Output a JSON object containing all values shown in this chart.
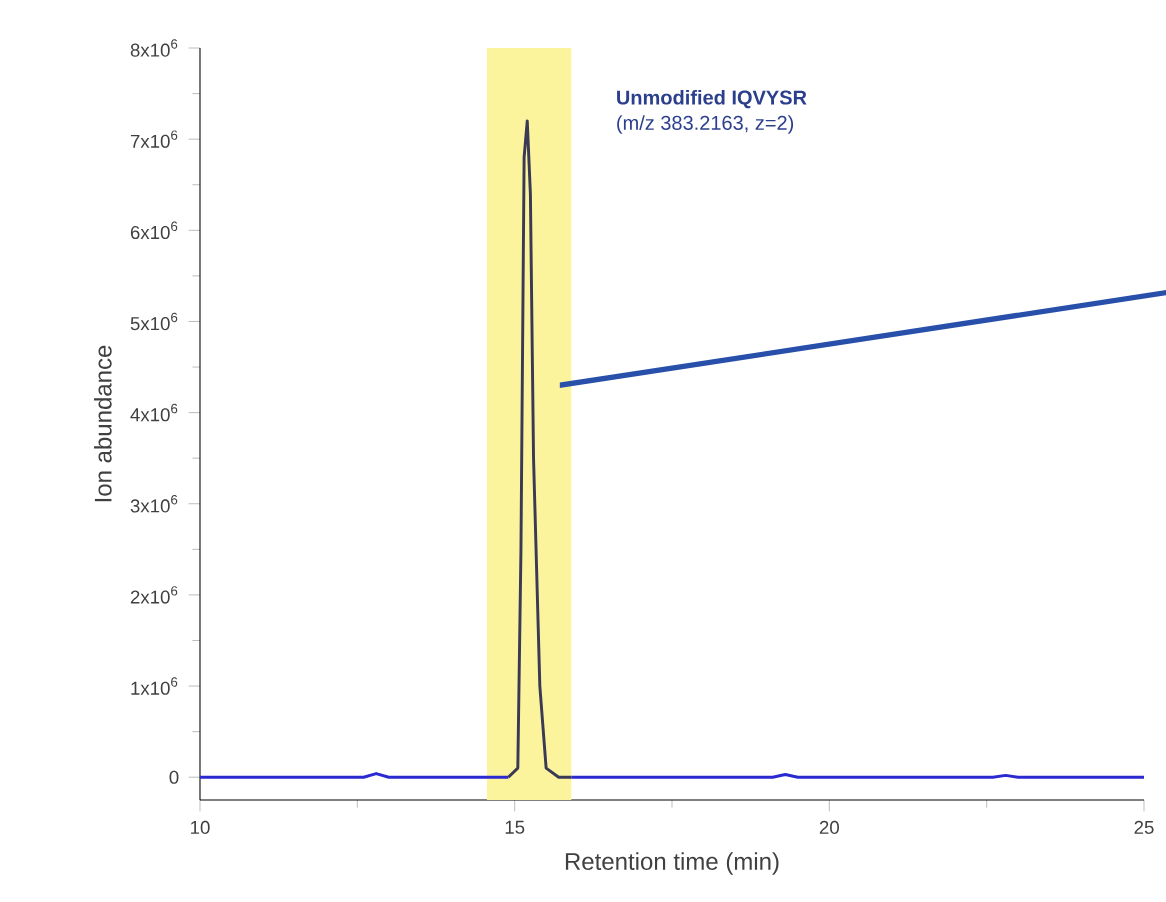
{
  "chart_data": {
    "type": "line",
    "xlabel": "Retention time (min)",
    "ylabel": "Ion abundance",
    "annotations": [
      "**Unmodified IQVYSR**",
      "(m/z 383.2163, z=2)"
    ],
    "xlim": [
      10,
      25
    ],
    "xticks": [
      10,
      15,
      20,
      25
    ],
    "ylim": [
      -250000,
      8000000
    ],
    "yticks": [
      0,
      {
        "value": 1000000,
        "label": "1x10$^{6}$"
      },
      {
        "value": 2000000,
        "label": "2x10$^{6}$"
      },
      {
        "value": 3000000,
        "label": "3x10$^{6}$"
      },
      {
        "value": 4000000,
        "label": "4x10$^{6}$"
      },
      {
        "value": 5000000,
        "label": "5x10$^{6}$"
      },
      {
        "value": 6000000,
        "label": "6x10$^{6}$"
      },
      {
        "value": 7000000,
        "label": "7x10$^{6}$"
      },
      {
        "value": 8000000,
        "label": "8x10$^{6}$"
      }
    ],
    "bands": [
      {
        "axis": "x",
        "from": 14.56,
        "to": 15.9,
        "color": "#fbf49c"
      }
    ],
    "series": [
      {
        "color": "#2a2ad0",
        "x": [
          10,
          12.6,
          12.8,
          13.0,
          14.9,
          15.3,
          15.9,
          19.1,
          19.3,
          19.5,
          22.6,
          22.8,
          23.0,
          25
        ],
        "values": [
          0,
          0,
          40000,
          0,
          0,
          null,
          0,
          0,
          30000,
          0,
          0,
          20000,
          0,
          0
        ]
      },
      {
        "color": "#3a3a55",
        "x": [
          14.9,
          15.05,
          15.1,
          15.15,
          15.2,
          15.25,
          15.3,
          15.4,
          15.5,
          15.7,
          15.9
        ],
        "values": [
          0,
          100000,
          2500000,
          6800000,
          7200000,
          6400000,
          3500000,
          1000000,
          100000,
          0,
          0
        ]
      }
    ],
    "grid": false,
    "marker": "none",
    "line_style": "solid"
  }
}
